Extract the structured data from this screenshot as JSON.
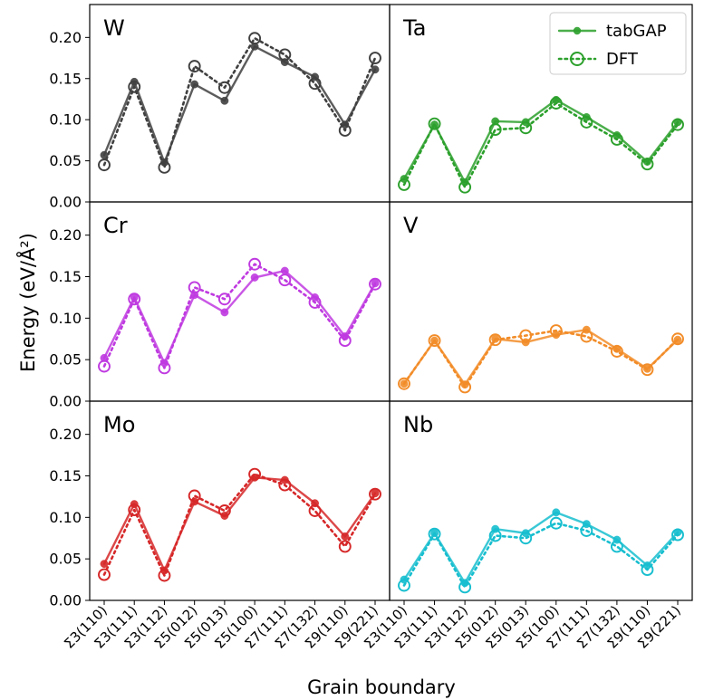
{
  "chart_data": {
    "type": "line",
    "ylabel": "Energy (eV/Å²)",
    "xlabel": "Grain boundary",
    "categories": [
      "Σ3(110)",
      "Σ3(111)",
      "Σ3(112)",
      "Σ5(012)",
      "Σ5(013)",
      "Σ5(100)",
      "Σ7(111)",
      "Σ7(132)",
      "Σ9(110)",
      "Σ9(221)"
    ],
    "ylim": [
      0,
      0.24
    ],
    "yticks": [
      "0.00",
      "0.05",
      "0.10",
      "0.15",
      "0.20"
    ],
    "legend": {
      "placement": "top-right",
      "entries": [
        "tabGAP",
        "DFT"
      ]
    },
    "panels": [
      {
        "label": "W",
        "color": "#404040",
        "series": [
          {
            "name": "tabGAP",
            "style": "solid",
            "values": [
              0.057,
              0.146,
              0.048,
              0.143,
              0.123,
              0.189,
              0.17,
              0.152,
              0.094,
              0.161
            ]
          },
          {
            "name": "DFT",
            "style": "dotted",
            "values": [
              0.045,
              0.14,
              0.042,
              0.165,
              0.139,
              0.199,
              0.179,
              0.144,
              0.087,
              0.175
            ]
          }
        ]
      },
      {
        "label": "Ta",
        "color": "#2ca02c",
        "series": [
          {
            "name": "tabGAP",
            "style": "solid",
            "values": [
              0.028,
              0.094,
              0.024,
              0.098,
              0.097,
              0.124,
              0.103,
              0.081,
              0.049,
              0.097
            ]
          },
          {
            "name": "DFT",
            "style": "dotted",
            "values": [
              0.021,
              0.095,
              0.018,
              0.088,
              0.09,
              0.12,
              0.097,
              0.076,
              0.046,
              0.094
            ]
          }
        ]
      },
      {
        "label": "Cr",
        "color": "#bf3ae0",
        "series": [
          {
            "name": "tabGAP",
            "style": "solid",
            "values": [
              0.052,
              0.125,
              0.046,
              0.128,
              0.107,
              0.149,
              0.157,
              0.125,
              0.078,
              0.142
            ]
          },
          {
            "name": "DFT",
            "style": "dotted",
            "values": [
              0.042,
              0.123,
              0.04,
              0.137,
              0.123,
              0.165,
              0.146,
              0.119,
              0.073,
              0.141
            ]
          }
        ]
      },
      {
        "label": "V",
        "color": "#f28c28",
        "series": [
          {
            "name": "tabGAP",
            "style": "solid",
            "values": [
              0.021,
              0.073,
              0.02,
              0.075,
              0.071,
              0.08,
              0.086,
              0.063,
              0.039,
              0.074
            ]
          },
          {
            "name": "DFT",
            "style": "dotted",
            "values": [
              0.021,
              0.073,
              0.017,
              0.074,
              0.079,
              0.085,
              0.078,
              0.06,
              0.038,
              0.075
            ]
          }
        ]
      },
      {
        "label": "Mo",
        "color": "#d62728",
        "series": [
          {
            "name": "tabGAP",
            "style": "solid",
            "values": [
              0.044,
              0.116,
              0.036,
              0.119,
              0.102,
              0.148,
              0.145,
              0.117,
              0.077,
              0.129
            ]
          },
          {
            "name": "DFT",
            "style": "dotted",
            "values": [
              0.031,
              0.109,
              0.03,
              0.126,
              0.108,
              0.152,
              0.139,
              0.108,
              0.065,
              0.128
            ]
          }
        ]
      },
      {
        "label": "Nb",
        "color": "#17becf",
        "series": [
          {
            "name": "tabGAP",
            "style": "solid",
            "values": [
              0.025,
              0.081,
              0.021,
              0.086,
              0.081,
              0.106,
              0.092,
              0.073,
              0.042,
              0.082
            ]
          },
          {
            "name": "DFT",
            "style": "dotted",
            "values": [
              0.018,
              0.08,
              0.016,
              0.078,
              0.075,
              0.093,
              0.084,
              0.065,
              0.037,
              0.079
            ]
          }
        ]
      }
    ]
  }
}
